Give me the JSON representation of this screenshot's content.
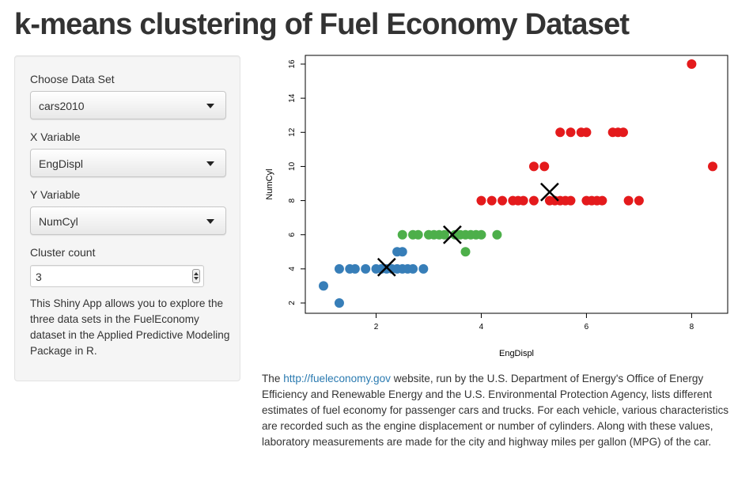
{
  "page": {
    "title": "k-means clustering of Fuel Economy Dataset"
  },
  "sidebar": {
    "dataset": {
      "label": "Choose Data Set",
      "value": "cars2010"
    },
    "xvar": {
      "label": "X Variable",
      "value": "EngDispl"
    },
    "yvar": {
      "label": "Y Variable",
      "value": "NumCyl"
    },
    "clusters": {
      "label": "Cluster count",
      "value": "3"
    },
    "description": "This Shiny App allows you to explore the three data sets in the FuelEconomy dataset in the Applied Predictive Modeling Package in R."
  },
  "icons": {
    "dropdown": "chevron-down-icon",
    "spinner": "spinner-arrows-icon",
    "centroid": "cross-icon"
  },
  "colors": {
    "cluster1": "#377eb8",
    "cluster2": "#4daf4a",
    "cluster3": "#e41a1c",
    "link": "#2a7ab0"
  },
  "chart_data": {
    "type": "scatter",
    "title": "",
    "xlabel": "EngDispl",
    "ylabel": "NumCyl",
    "xlim": [
      1,
      8.4
    ],
    "ylim": [
      2,
      16
    ],
    "xticks": [
      2,
      4,
      6,
      8
    ],
    "yticks": [
      2,
      4,
      6,
      8,
      10,
      12,
      14,
      16
    ],
    "grid": false,
    "series": [
      {
        "color": "#377eb8",
        "points": [
          [
            1.0,
            3
          ],
          [
            1.3,
            2
          ],
          [
            1.3,
            4
          ],
          [
            1.5,
            4
          ],
          [
            1.6,
            4
          ],
          [
            1.8,
            4
          ],
          [
            2.0,
            4
          ],
          [
            2.1,
            4
          ],
          [
            2.2,
            4
          ],
          [
            2.3,
            4
          ],
          [
            2.4,
            4
          ],
          [
            2.5,
            4
          ],
          [
            2.6,
            4
          ],
          [
            2.7,
            4
          ],
          [
            2.9,
            4
          ],
          [
            2.4,
            5
          ],
          [
            2.5,
            5
          ]
        ]
      },
      {
        "color": "#4daf4a",
        "points": [
          [
            2.5,
            6
          ],
          [
            2.7,
            6
          ],
          [
            2.8,
            6
          ],
          [
            3.0,
            6
          ],
          [
            3.1,
            6
          ],
          [
            3.2,
            6
          ],
          [
            3.3,
            6
          ],
          [
            3.5,
            6
          ],
          [
            3.6,
            6
          ],
          [
            3.7,
            6
          ],
          [
            3.8,
            6
          ],
          [
            3.9,
            6
          ],
          [
            4.0,
            6
          ],
          [
            4.3,
            6
          ],
          [
            3.7,
            5
          ]
        ]
      },
      {
        "color": "#e41a1c",
        "points": [
          [
            4.0,
            8
          ],
          [
            4.2,
            8
          ],
          [
            4.4,
            8
          ],
          [
            4.6,
            8
          ],
          [
            4.7,
            8
          ],
          [
            4.8,
            8
          ],
          [
            5.0,
            8
          ],
          [
            5.3,
            8
          ],
          [
            5.4,
            8
          ],
          [
            5.5,
            8
          ],
          [
            5.6,
            8
          ],
          [
            5.7,
            8
          ],
          [
            6.0,
            8
          ],
          [
            6.1,
            8
          ],
          [
            6.2,
            8
          ],
          [
            6.3,
            8
          ],
          [
            6.8,
            8
          ],
          [
            7.0,
            8
          ],
          [
            5.0,
            10
          ],
          [
            5.2,
            10
          ],
          [
            8.4,
            10
          ],
          [
            5.5,
            12
          ],
          [
            5.7,
            12
          ],
          [
            5.9,
            12
          ],
          [
            6.0,
            12
          ],
          [
            6.5,
            12
          ],
          [
            6.6,
            12
          ],
          [
            6.7,
            12
          ],
          [
            8.0,
            16
          ]
        ]
      }
    ],
    "centers": [
      [
        2.2,
        4.1
      ],
      [
        3.45,
        6.0
      ],
      [
        5.3,
        8.5
      ]
    ]
  },
  "footer": {
    "prefix": "The ",
    "link": "http://fueleconomy.gov",
    "rest": " website, run by the U.S. Department of Energy's Office of Energy Efficiency and Renewable Energy and the U.S. Environmental Protection Agency, lists different estimates of fuel economy for passenger cars and trucks. For each vehicle, various characteristics are recorded such as the engine displacement or number of cylinders. Along with these values, laboratory measurements are made for the city and highway miles per gallon (MPG) of the car."
  }
}
